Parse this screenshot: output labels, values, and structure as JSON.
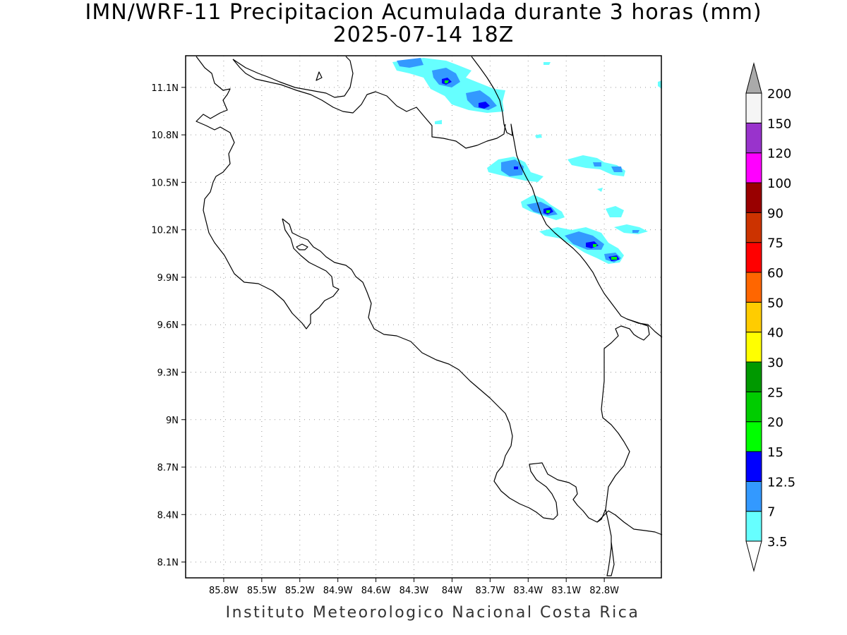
{
  "title": {
    "line1": "IMN/WRF-11 Precipitacion Acumulada durante 3 horas (mm)",
    "line2": "2025-07-14 18Z"
  },
  "footer": "Instituto Meteorologico Nacional Costa Rica",
  "map": {
    "lon_range": [
      -86.1,
      -82.35
    ],
    "lat_range": [
      8.0,
      11.3
    ],
    "lat_ticks": [
      {
        "value": 11.1,
        "label": "11.1N"
      },
      {
        "value": 10.8,
        "label": "10.8N"
      },
      {
        "value": 10.5,
        "label": "10.5N"
      },
      {
        "value": 10.2,
        "label": "10.2N"
      },
      {
        "value": 9.9,
        "label": "9.9N"
      },
      {
        "value": 9.6,
        "label": "9.6N"
      },
      {
        "value": 9.3,
        "label": "9.3N"
      },
      {
        "value": 9.0,
        "label": "9N"
      },
      {
        "value": 8.7,
        "label": "8.7N"
      },
      {
        "value": 8.4,
        "label": "8.4N"
      },
      {
        "value": 8.1,
        "label": "8.1N"
      }
    ],
    "lon_ticks": [
      {
        "value": -85.8,
        "label": "85.8W"
      },
      {
        "value": -85.5,
        "label": "85.5W"
      },
      {
        "value": -85.2,
        "label": "85.2W"
      },
      {
        "value": -84.9,
        "label": "84.9W"
      },
      {
        "value": -84.6,
        "label": "84.6W"
      },
      {
        "value": -84.3,
        "label": "84.3W"
      },
      {
        "value": -84.0,
        "label": "84W"
      },
      {
        "value": -83.7,
        "label": "83.7W"
      },
      {
        "value": -83.4,
        "label": "83.4W"
      },
      {
        "value": -83.1,
        "label": "83.1W"
      },
      {
        "value": -82.8,
        "label": "82.8W"
      }
    ]
  },
  "colorbar": {
    "levels": [
      {
        "label": "3.5",
        "color": "#66ffff"
      },
      {
        "label": "7",
        "color": "#3399ff"
      },
      {
        "label": "12.5",
        "color": "#0000ff"
      },
      {
        "label": "15",
        "color": "#00ff00"
      },
      {
        "label": "20",
        "color": "#00cc00"
      },
      {
        "label": "25",
        "color": "#009900"
      },
      {
        "label": "30",
        "color": "#ffff00"
      },
      {
        "label": "40",
        "color": "#ffcc00"
      },
      {
        "label": "50",
        "color": "#ff6600"
      },
      {
        "label": "60",
        "color": "#ff0000"
      },
      {
        "label": "75",
        "color": "#cc3300"
      },
      {
        "label": "90",
        "color": "#990000"
      },
      {
        "label": "100",
        "color": "#ff00ff"
      },
      {
        "label": "120",
        "color": "#9933cc"
      },
      {
        "label": "150",
        "color": "#f5f5f5"
      },
      {
        "label": "200",
        "color": "#aaaaaa"
      }
    ],
    "below_color": "#ffffff",
    "above_color": "#aaaaaa"
  }
}
